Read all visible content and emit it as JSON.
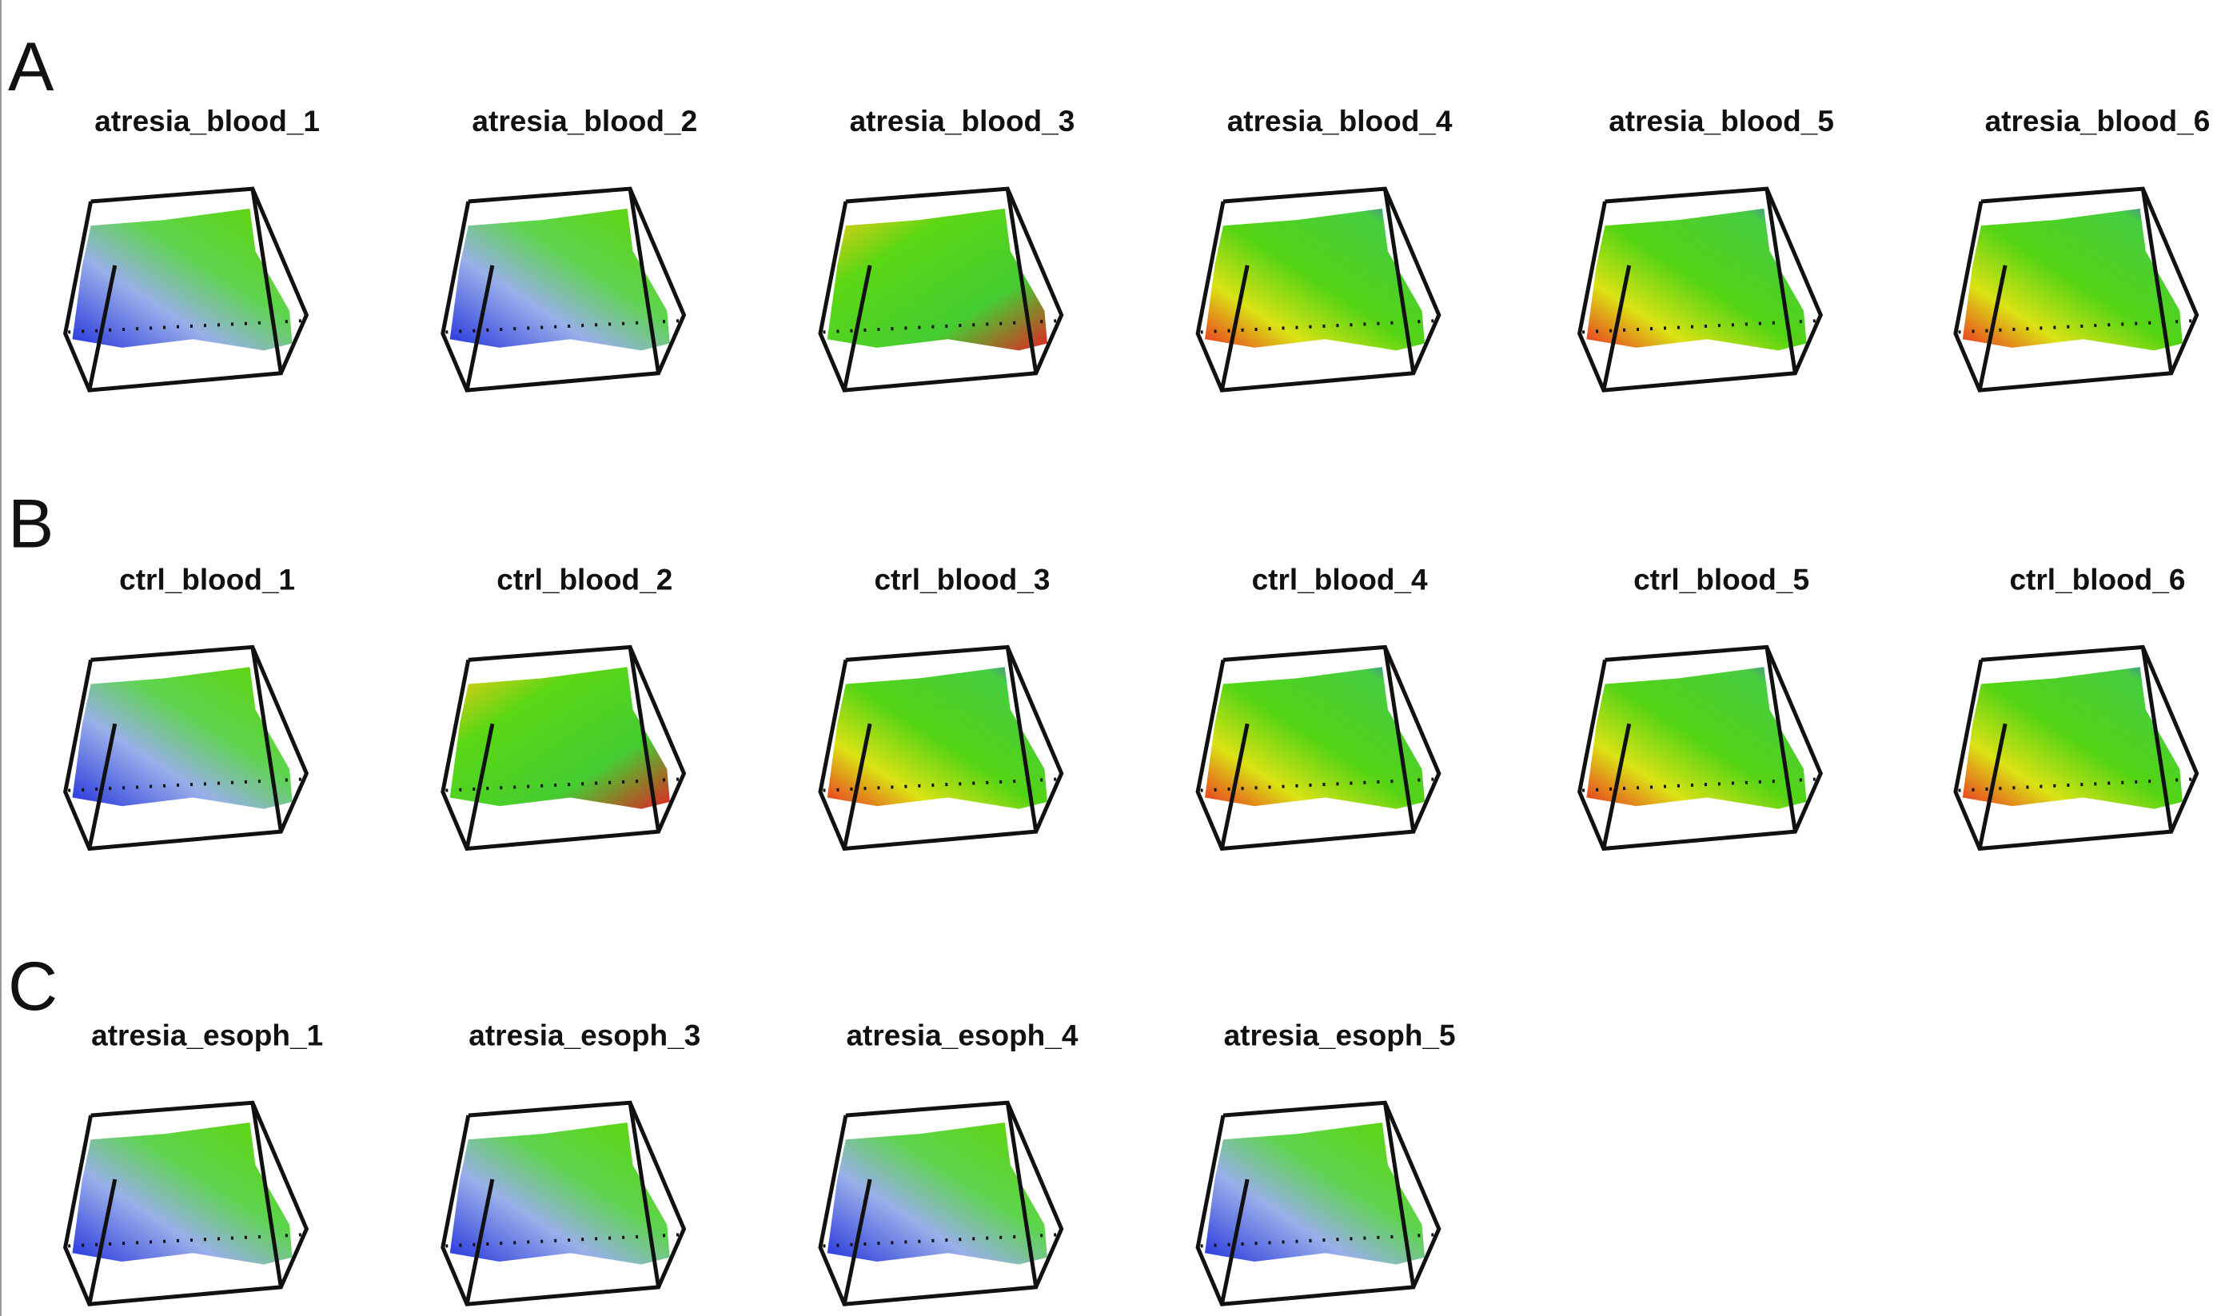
{
  "panels": [
    {
      "label": "A",
      "plots": [
        "atresia_blood_1",
        "atresia_blood_2",
        "atresia_blood_3",
        "atresia_blood_4",
        "atresia_blood_5",
        "atresia_blood_6"
      ]
    },
    {
      "label": "B",
      "plots": [
        "ctrl_blood_1",
        "ctrl_blood_2",
        "ctrl_blood_3",
        "ctrl_blood_4",
        "ctrl_blood_5",
        "ctrl_blood_6"
      ]
    },
    {
      "label": "C",
      "plots": [
        "atresia_esoph_1",
        "atresia_esoph_3",
        "atresia_esoph_4",
        "atresia_esoph_5"
      ]
    }
  ]
}
